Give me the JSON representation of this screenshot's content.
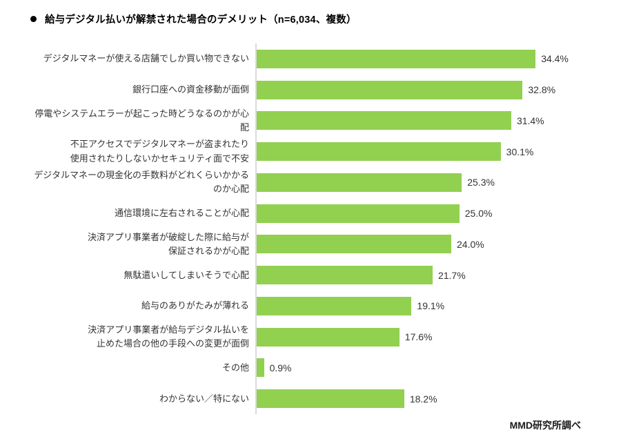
{
  "title": "給与デジタル払いが解禁された場合のデメリット（n=6,034、複数）",
  "source": "MMD研究所調べ",
  "colors": {
    "bar": "#92d050",
    "axis": "#d9d9d9",
    "text": "#333333"
  },
  "chart_data": {
    "type": "bar",
    "orientation": "horizontal",
    "title": "給与デジタル払いが解禁された場合のデメリット（n=6,034、複数）",
    "categories": [
      "デジタルマネーが使える店舗でしか買い物できない",
      "銀行口座への資金移動が面倒",
      "停電やシステムエラーが起こった時どうなるのかが心配",
      "不正アクセスでデジタルマネーが盗まれたり\n使用されたりしないかセキュリティ面で不安",
      "デジタルマネーの現金化の手数料がどれくらいかかるのか心配",
      "通信環境に左右されることが心配",
      "決済アプリ事業者が破綻した際に給与が\n保証されるかが心配",
      "無駄遣いしてしまいそうで心配",
      "給与のありがたみが薄れる",
      "決済アプリ事業者が給与デジタル払いを\n止めた場合の他の手段への変更が面倒",
      "その他",
      "わからない／特にない"
    ],
    "values": [
      34.4,
      32.8,
      31.4,
      30.1,
      25.3,
      25.0,
      24.0,
      21.7,
      19.1,
      17.6,
      0.9,
      18.2
    ],
    "value_labels": [
      "34.4%",
      "32.8%",
      "31.4%",
      "30.1%",
      "25.3%",
      "25.0%",
      "24.0%",
      "21.7%",
      "19.1%",
      "17.6%",
      "0.9%",
      "18.2%"
    ],
    "xlim": [
      0,
      40
    ],
    "grid": false,
    "legend": "none",
    "value_suffix": "%"
  }
}
